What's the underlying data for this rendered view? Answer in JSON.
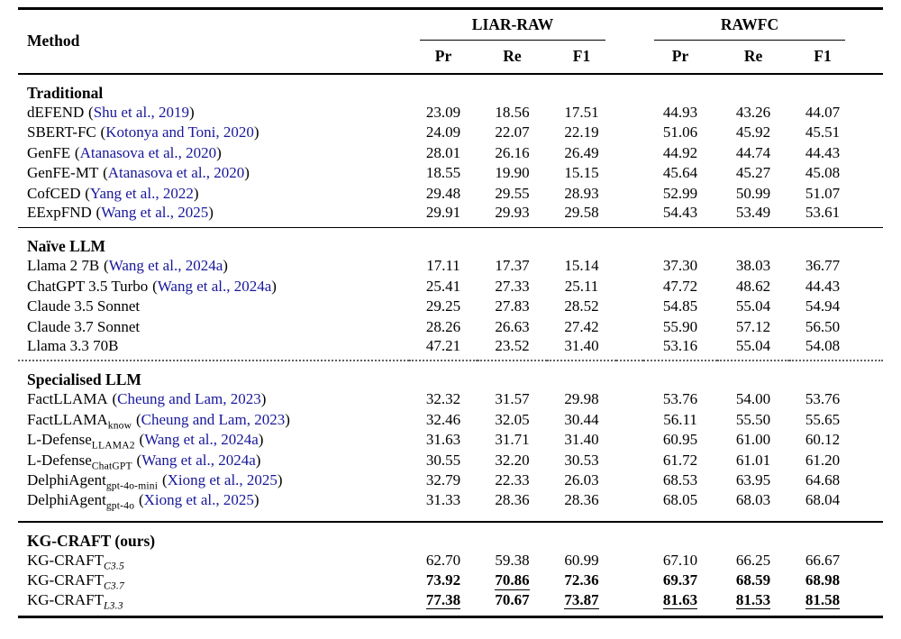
{
  "page": {
    "background": "#ffffff"
  },
  "table": {
    "method_header": "Method",
    "punct": {
      "open": "(",
      "close": ")"
    },
    "groups": [
      {
        "label": "LIAR-RAW",
        "cols": [
          "Pr",
          "Re",
          "F1"
        ]
      },
      {
        "label": "RAWFC",
        "cols": [
          "Pr",
          "Re",
          "F1"
        ]
      }
    ],
    "sections": [
      {
        "title": "Traditional",
        "divider_above": "none",
        "rows": [
          {
            "name": "dEFEND",
            "cite": "Shu et al., 2019",
            "values": [
              "23.09",
              "18.56",
              "17.51",
              "44.93",
              "43.26",
              "44.07"
            ]
          },
          {
            "name": "SBERT-FC",
            "cite": "Kotonya and Toni, 2020",
            "values": [
              "24.09",
              "22.07",
              "22.19",
              "51.06",
              "45.92",
              "45.51"
            ]
          },
          {
            "name": "GenFE",
            "cite": "Atanasova et al., 2020",
            "values": [
              "28.01",
              "26.16",
              "26.49",
              "44.92",
              "44.74",
              "44.43"
            ]
          },
          {
            "name": "GenFE-MT",
            "cite": "Atanasova et al., 2020",
            "values": [
              "18.55",
              "19.90",
              "15.15",
              "45.64",
              "45.27",
              "45.08"
            ]
          },
          {
            "name": "CofCED",
            "cite": "Yang et al., 2022",
            "values": [
              "29.48",
              "29.55",
              "28.93",
              "52.99",
              "50.99",
              "51.07"
            ]
          },
          {
            "name": "EExpFND",
            "cite": "Wang et al., 2025",
            "values": [
              "29.91",
              "29.93",
              "29.58",
              "54.43",
              "53.49",
              "53.61"
            ]
          }
        ]
      },
      {
        "title": "Naïve LLM",
        "divider_above": "solid",
        "rows": [
          {
            "name": "Llama 2 7B",
            "cite": "Wang et al., 2024a",
            "values": [
              "17.11",
              "17.37",
              "15.14",
              "37.30",
              "38.03",
              "36.77"
            ]
          },
          {
            "name": "ChatGPT 3.5 Turbo",
            "cite": "Wang et al., 2024a",
            "values": [
              "25.41",
              "27.33",
              "25.11",
              "47.72",
              "48.62",
              "44.43"
            ]
          },
          {
            "name": "Claude 3.5 Sonnet",
            "values": [
              "29.25",
              "27.83",
              "28.52",
              "54.85",
              "55.04",
              "54.94"
            ]
          },
          {
            "name": "Claude 3.7 Sonnet",
            "values": [
              "28.26",
              "26.63",
              "27.42",
              "55.90",
              "57.12",
              "56.50"
            ]
          },
          {
            "name": "Llama 3.3 70B",
            "values": [
              "47.21",
              "23.52",
              "31.40",
              "53.16",
              "55.04",
              "54.08"
            ]
          }
        ]
      },
      {
        "title": "Specialised LLM",
        "divider_above": "dotted",
        "rows": [
          {
            "name": "FactLLAMA",
            "cite": "Cheung and Lam, 2023",
            "values": [
              "32.32",
              "31.57",
              "29.98",
              "53.76",
              "54.00",
              "53.76"
            ]
          },
          {
            "name": "FactLLAMA",
            "sub": "know",
            "cite": "Cheung and Lam, 2023",
            "values": [
              "32.46",
              "32.05",
              "30.44",
              "56.11",
              "55.50",
              "55.65"
            ]
          },
          {
            "name": "L-Defense",
            "sub": "LLAMA2",
            "cite": "Wang et al., 2024a",
            "values": [
              "31.63",
              "31.71",
              "31.40",
              "60.95",
              "61.00",
              "60.12"
            ]
          },
          {
            "name": "L-Defense",
            "sub": "ChatGPT",
            "cite": "Wang et al., 2024a",
            "values": [
              "30.55",
              "32.20",
              "30.53",
              "61.72",
              "61.01",
              "61.20"
            ]
          },
          {
            "name": "DelphiAgent",
            "sub": "gpt-4o-mini",
            "cite": "Xiong et al., 2025",
            "values": [
              "32.79",
              "22.33",
              "26.03",
              "68.53",
              "63.95",
              "64.68"
            ]
          },
          {
            "name": "DelphiAgent",
            "sub": "gpt-4o",
            "cite": "Xiong et al., 2025",
            "values": [
              "31.33",
              "28.36",
              "28.36",
              "68.05",
              "68.03",
              "68.04"
            ]
          }
        ]
      },
      {
        "title": "KG-CRAFT (ours)",
        "divider_above": "thick",
        "rows": [
          {
            "name": "KG-CRAFT",
            "sub": "C3.5",
            "sub_italic": true,
            "values": [
              "62.70",
              "59.38",
              "60.99",
              "67.10",
              "66.25",
              "66.67"
            ]
          },
          {
            "name": "KG-CRAFT",
            "sub": "C3.7",
            "sub_italic": true,
            "values": [
              "73.92",
              "70.86",
              "72.36",
              "69.37",
              "68.59",
              "68.98"
            ],
            "styles": [
              "b",
              "bu",
              "b",
              "b",
              "b",
              "b"
            ]
          },
          {
            "name": "KG-CRAFT",
            "sub": "L3.3",
            "sub_italic": true,
            "values": [
              "77.38",
              "70.67",
              "73.87",
              "81.63",
              "81.53",
              "81.58"
            ],
            "styles": [
              "bu",
              "b",
              "bu",
              "bu",
              "bu",
              "bu"
            ]
          }
        ]
      }
    ]
  },
  "colors": {
    "citation_link": "#18189b",
    "rule": "#000000",
    "dotted_divider": "#606060",
    "background": "#ffffff"
  }
}
